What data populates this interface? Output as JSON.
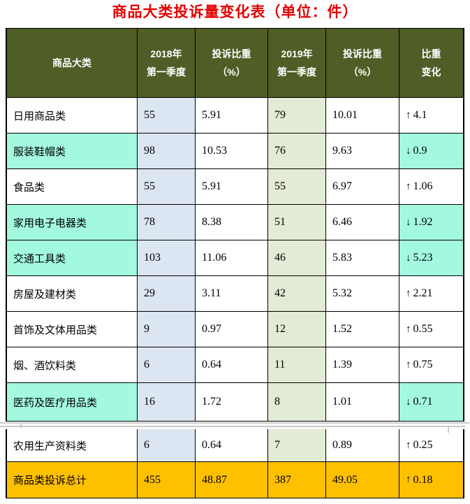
{
  "title": "商品大类投诉量变化表（单位：件）",
  "colors": {
    "title_text": "#E60000",
    "header_bg": "#4F5D26",
    "header_text": "#FFFFFF",
    "col_2018_bg": "#DCE6F2",
    "col_2019_bg": "#E2EBD5",
    "highlight_decline_bg": "#A2F9E0",
    "total_row_bg": "#FFC000",
    "border": "#000000",
    "seam_line": "#C9C9C9"
  },
  "trend_glyphs": {
    "up": "↑",
    "down": "↓"
  },
  "table": {
    "headers": {
      "category": "商品大类",
      "q2018_line1": "2018年",
      "q2018_line2": "第一季度",
      "share2018_line1": "投诉比重",
      "share2018_line2": "（%）",
      "q2019_line1": "2019年",
      "q2019_line2": "第一季度",
      "share2019_line1": "投诉比重",
      "share2019_line2": "（%）",
      "change_line1": "比重",
      "change_line2": "变化"
    },
    "rows": [
      {
        "category": "日用商品类",
        "count_2018": "55",
        "share_2018": "5.91",
        "count_2019": "79",
        "share_2019": "10.01",
        "trend": "up",
        "change": "4.1",
        "highlighted": false,
        "is_total": false
      },
      {
        "category": "服装鞋帽类",
        "count_2018": "98",
        "share_2018": "10.53",
        "count_2019": "76",
        "share_2019": "9.63",
        "trend": "down",
        "change": "0.9",
        "highlighted": true,
        "is_total": false
      },
      {
        "category": "食品类",
        "count_2018": "55",
        "share_2018": "5.91",
        "count_2019": "55",
        "share_2019": "6.97",
        "trend": "up",
        "change": "1.06",
        "highlighted": false,
        "is_total": false
      },
      {
        "category": "家用电子电器类",
        "count_2018": "78",
        "share_2018": "8.38",
        "count_2019": "51",
        "share_2019": "6.46",
        "trend": "down",
        "change": "1.92",
        "highlighted": true,
        "is_total": false
      },
      {
        "category": "交通工具类",
        "count_2018": "103",
        "share_2018": "11.06",
        "count_2019": "46",
        "share_2019": "5.83",
        "trend": "down",
        "change": "5.23",
        "highlighted": true,
        "is_total": false
      },
      {
        "category": "房屋及建材类",
        "count_2018": "29",
        "share_2018": "3.11",
        "count_2019": "42",
        "share_2019": "5.32",
        "trend": "up",
        "change": "2.21",
        "highlighted": false,
        "is_total": false
      },
      {
        "category": "首饰及文体用品类",
        "count_2018": "9",
        "share_2018": "0.97",
        "count_2019": "12",
        "share_2019": "1.52",
        "trend": "up",
        "change": "0.55",
        "highlighted": false,
        "is_total": false
      },
      {
        "category": "烟、酒饮料类",
        "count_2018": "6",
        "share_2018": "0.64",
        "count_2019": "11",
        "share_2019": "1.39",
        "trend": "up",
        "change": "0.75",
        "highlighted": false,
        "is_total": false
      },
      {
        "category": "医药及医疗用品类",
        "count_2018": "16",
        "share_2018": "1.72",
        "count_2019": "8",
        "share_2019": "1.01",
        "trend": "down",
        "change": "0.71",
        "highlighted": true,
        "is_total": false
      }
    ],
    "rows_continued": [
      {
        "category": "农用生产资料类",
        "count_2018": "6",
        "share_2018": "0.64",
        "count_2019": "7",
        "share_2019": "0.89",
        "trend": "up",
        "change": "0.25",
        "highlighted": false,
        "is_total": false
      },
      {
        "category": "商品类投诉总计",
        "count_2018": "455",
        "share_2018": "48.87",
        "count_2019": "387",
        "share_2019": "49.05",
        "trend": "up",
        "change": "0.18",
        "highlighted": false,
        "is_total": true
      }
    ]
  },
  "chart_data": {
    "type": "table",
    "title": "商品大类投诉量变化表（单位：件）",
    "columns": [
      "商品大类",
      "2018年第一季度",
      "投诉比重（%）",
      "2019年第一季度",
      "投诉比重（%）",
      "比重变化"
    ],
    "rows": [
      [
        "日用商品类",
        55,
        5.91,
        79,
        10.01,
        "↑4.1"
      ],
      [
        "服装鞋帽类",
        98,
        10.53,
        76,
        9.63,
        "↓0.9"
      ],
      [
        "食品类",
        55,
        5.91,
        55,
        6.97,
        "↑1.06"
      ],
      [
        "家用电子电器类",
        78,
        8.38,
        51,
        6.46,
        "↓1.92"
      ],
      [
        "交通工具类",
        103,
        11.06,
        46,
        5.83,
        "↓5.23"
      ],
      [
        "房屋及建材类",
        29,
        3.11,
        42,
        5.32,
        "↑2.21"
      ],
      [
        "首饰及文体用品类",
        9,
        0.97,
        12,
        1.52,
        "↑0.55"
      ],
      [
        "烟、酒饮料类",
        6,
        0.64,
        11,
        1.39,
        "↑0.75"
      ],
      [
        "医药及医疗用品类",
        16,
        1.72,
        8,
        1.01,
        "↓0.71"
      ],
      [
        "农用生产资料类",
        6,
        0.64,
        7,
        0.89,
        "↑0.25"
      ],
      [
        "商品类投诉总计",
        455,
        48.87,
        387,
        49.05,
        "↑0.18"
      ]
    ]
  }
}
